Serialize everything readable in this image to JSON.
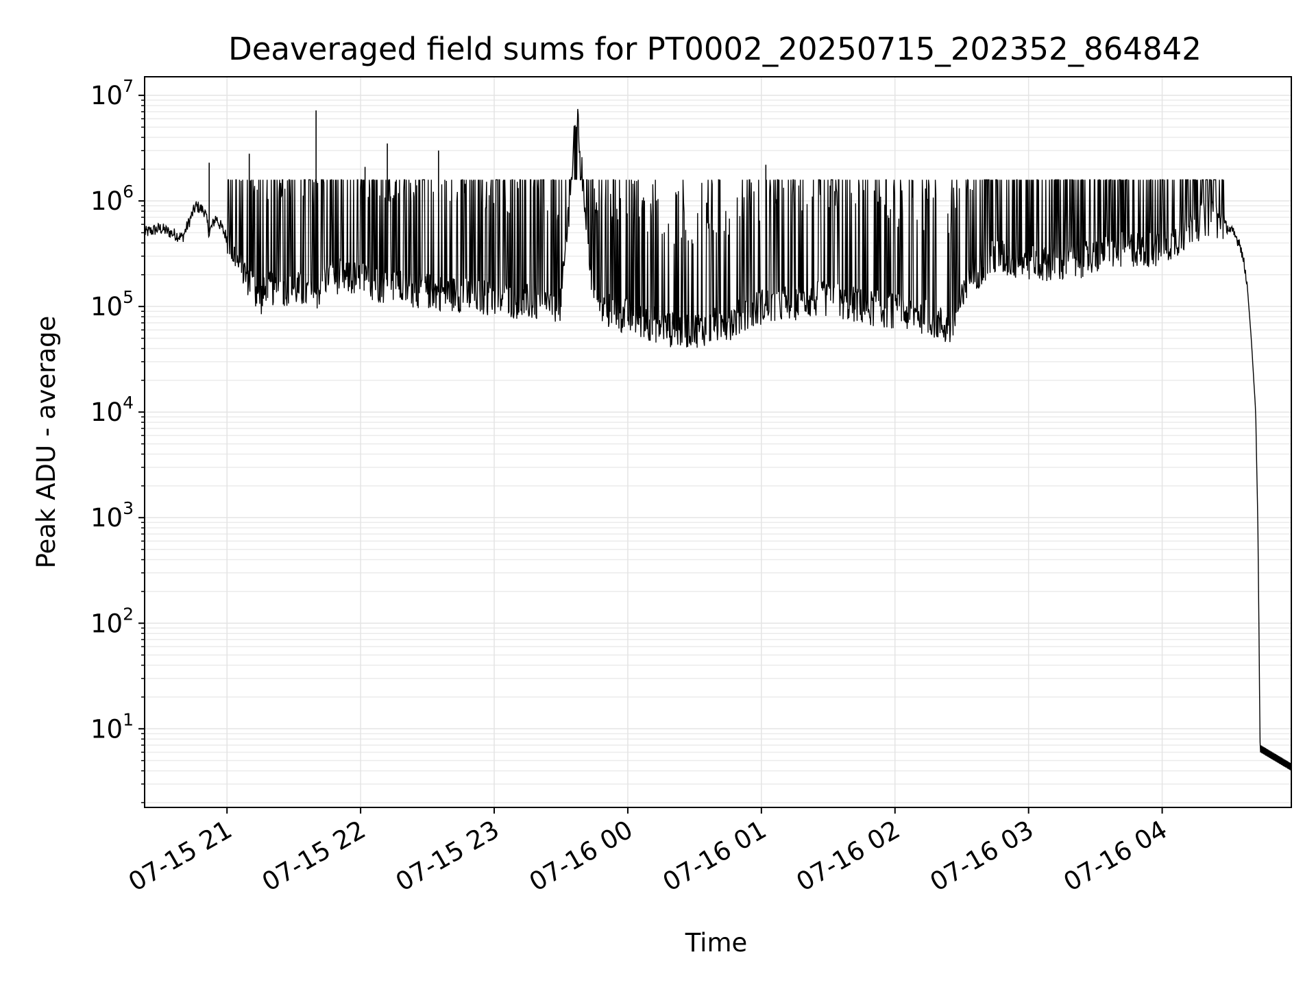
{
  "chart_data": {
    "type": "line",
    "title": "Deaveraged field sums for PT0002_20250715_202352_864842",
    "xlabel": "Time",
    "ylabel": "Peak ADU - average",
    "y_scale": "log",
    "ylim": [
      1.8,
      15000000
    ],
    "xlim": [
      "2025-07-15 20:23",
      "2025-07-16 04:58"
    ],
    "grid": true,
    "legend": "none",
    "line_color": "#000000",
    "x_ticks": [
      {
        "value": "2025-07-15 21:00",
        "label": "07-15 21"
      },
      {
        "value": "2025-07-15 22:00",
        "label": "07-15 22"
      },
      {
        "value": "2025-07-15 23:00",
        "label": "07-15 23"
      },
      {
        "value": "2025-07-16 00:00",
        "label": "07-16 00"
      },
      {
        "value": "2025-07-16 01:00",
        "label": "07-16 01"
      },
      {
        "value": "2025-07-16 02:00",
        "label": "07-16 02"
      },
      {
        "value": "2025-07-16 03:00",
        "label": "07-16 03"
      },
      {
        "value": "2025-07-16 04:00",
        "label": "07-16 04"
      }
    ],
    "y_ticks": [
      {
        "value": 10,
        "base": "10",
        "exp": "1"
      },
      {
        "value": 100,
        "base": "10",
        "exp": "2"
      },
      {
        "value": 1000,
        "base": "10",
        "exp": "3"
      },
      {
        "value": 10000,
        "base": "10",
        "exp": "4"
      },
      {
        "value": 100000,
        "base": "10",
        "exp": "5"
      },
      {
        "value": 1000000,
        "base": "10",
        "exp": "6"
      },
      {
        "value": 10000000,
        "base": "10",
        "exp": "7"
      }
    ],
    "series": [
      {
        "x": [
          "2025-07-15 20:23",
          "2025-07-15 20:30",
          "2025-07-15 20:40",
          "2025-07-15 20:46",
          "2025-07-15 20:50",
          "2025-07-15 20:52",
          "2025-07-15 20:55",
          "2025-07-15 21:00",
          "2025-07-15 21:05",
          "2025-07-15 21:10",
          "2025-07-15 21:15",
          "2025-07-15 21:20",
          "2025-07-15 21:30",
          "2025-07-15 21:40",
          "2025-07-15 21:45",
          "2025-07-15 22:00",
          "2025-07-15 22:15",
          "2025-07-15 22:30",
          "2025-07-15 22:45",
          "2025-07-15 23:00",
          "2025-07-15 23:15",
          "2025-07-15 23:30",
          "2025-07-15 23:37",
          "2025-07-15 23:45",
          "2025-07-16 00:00",
          "2025-07-16 00:10",
          "2025-07-16 00:20",
          "2025-07-16 00:30",
          "2025-07-16 00:45",
          "2025-07-16 01:00",
          "2025-07-16 01:15",
          "2025-07-16 01:30",
          "2025-07-16 01:45",
          "2025-07-16 02:00",
          "2025-07-16 02:15",
          "2025-07-16 02:25",
          "2025-07-16 02:35",
          "2025-07-16 02:45",
          "2025-07-16 03:00",
          "2025-07-16 03:15",
          "2025-07-16 03:30",
          "2025-07-16 03:45",
          "2025-07-16 04:00",
          "2025-07-16 04:10",
          "2025-07-16 04:20",
          "2025-07-16 04:25",
          "2025-07-16 04:30",
          "2025-07-16 04:35",
          "2025-07-16 04:38",
          "2025-07-16 04:40",
          "2025-07-16 04:42",
          "2025-07-16 04:43",
          "2025-07-16 04:44",
          "2025-07-16 04:58"
        ],
        "y": [
          500000,
          550000,
          450000,
          900000,
          800000,
          500000,
          700000,
          450000,
          250000,
          180000,
          120000,
          150000,
          150000,
          130000,
          200000,
          180000,
          150000,
          140000,
          130000,
          120000,
          110000,
          100000,
          6800000,
          100000,
          80000,
          70000,
          60000,
          60000,
          70000,
          100000,
          110000,
          120000,
          100000,
          90000,
          80000,
          60000,
          200000,
          300000,
          250000,
          250000,
          300000,
          350000,
          350000,
          500000,
          700000,
          650000,
          550000,
          400000,
          180000,
          50000,
          10000,
          800,
          6,
          4
        ],
        "spikes": [
          {
            "x": "2025-07-15 20:52",
            "y": 2300000
          },
          {
            "x": "2025-07-15 21:10",
            "y": 2800000
          },
          {
            "x": "2025-07-15 21:40",
            "y": 7200000
          },
          {
            "x": "2025-07-15 22:02",
            "y": 2100000
          },
          {
            "x": "2025-07-15 22:12",
            "y": 3500000
          },
          {
            "x": "2025-07-15 22:35",
            "y": 3000000
          },
          {
            "x": "2025-07-15 23:37",
            "y": 6800000
          },
          {
            "x": "2025-07-16 01:02",
            "y": 2200000
          }
        ]
      }
    ]
  }
}
